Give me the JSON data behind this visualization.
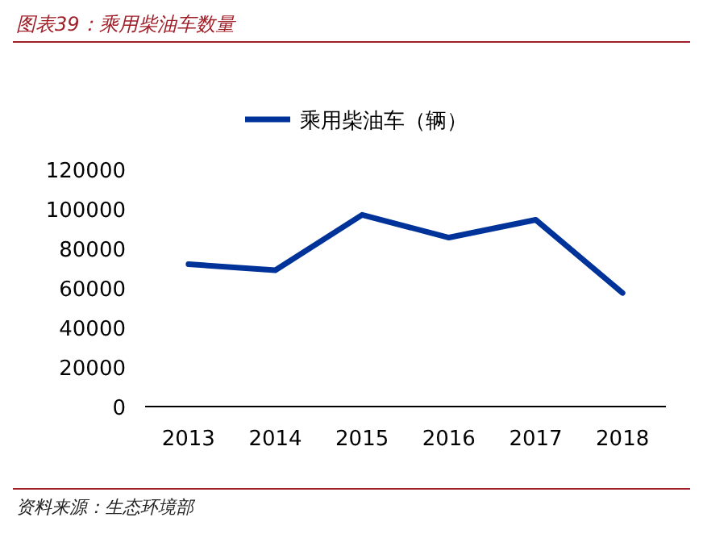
{
  "chart_data": {
    "type": "line",
    "title": "图表39：乘用柴油车数量",
    "categories": [
      "2013",
      "2014",
      "2015",
      "2016",
      "2017",
      "2018"
    ],
    "series": [
      {
        "name": "乘用柴油车（辆）",
        "color": "#003399",
        "values": [
          72000,
          69000,
          97000,
          85500,
          94500,
          57500
        ]
      }
    ],
    "ylim": [
      0,
      120000
    ],
    "yticks": [
      0,
      20000,
      40000,
      60000,
      80000,
      100000,
      120000
    ],
    "legend": "top",
    "grid": false,
    "marker": "none",
    "line_style": "solid",
    "annotations": [
      "资料来源：生态环境部"
    ]
  }
}
